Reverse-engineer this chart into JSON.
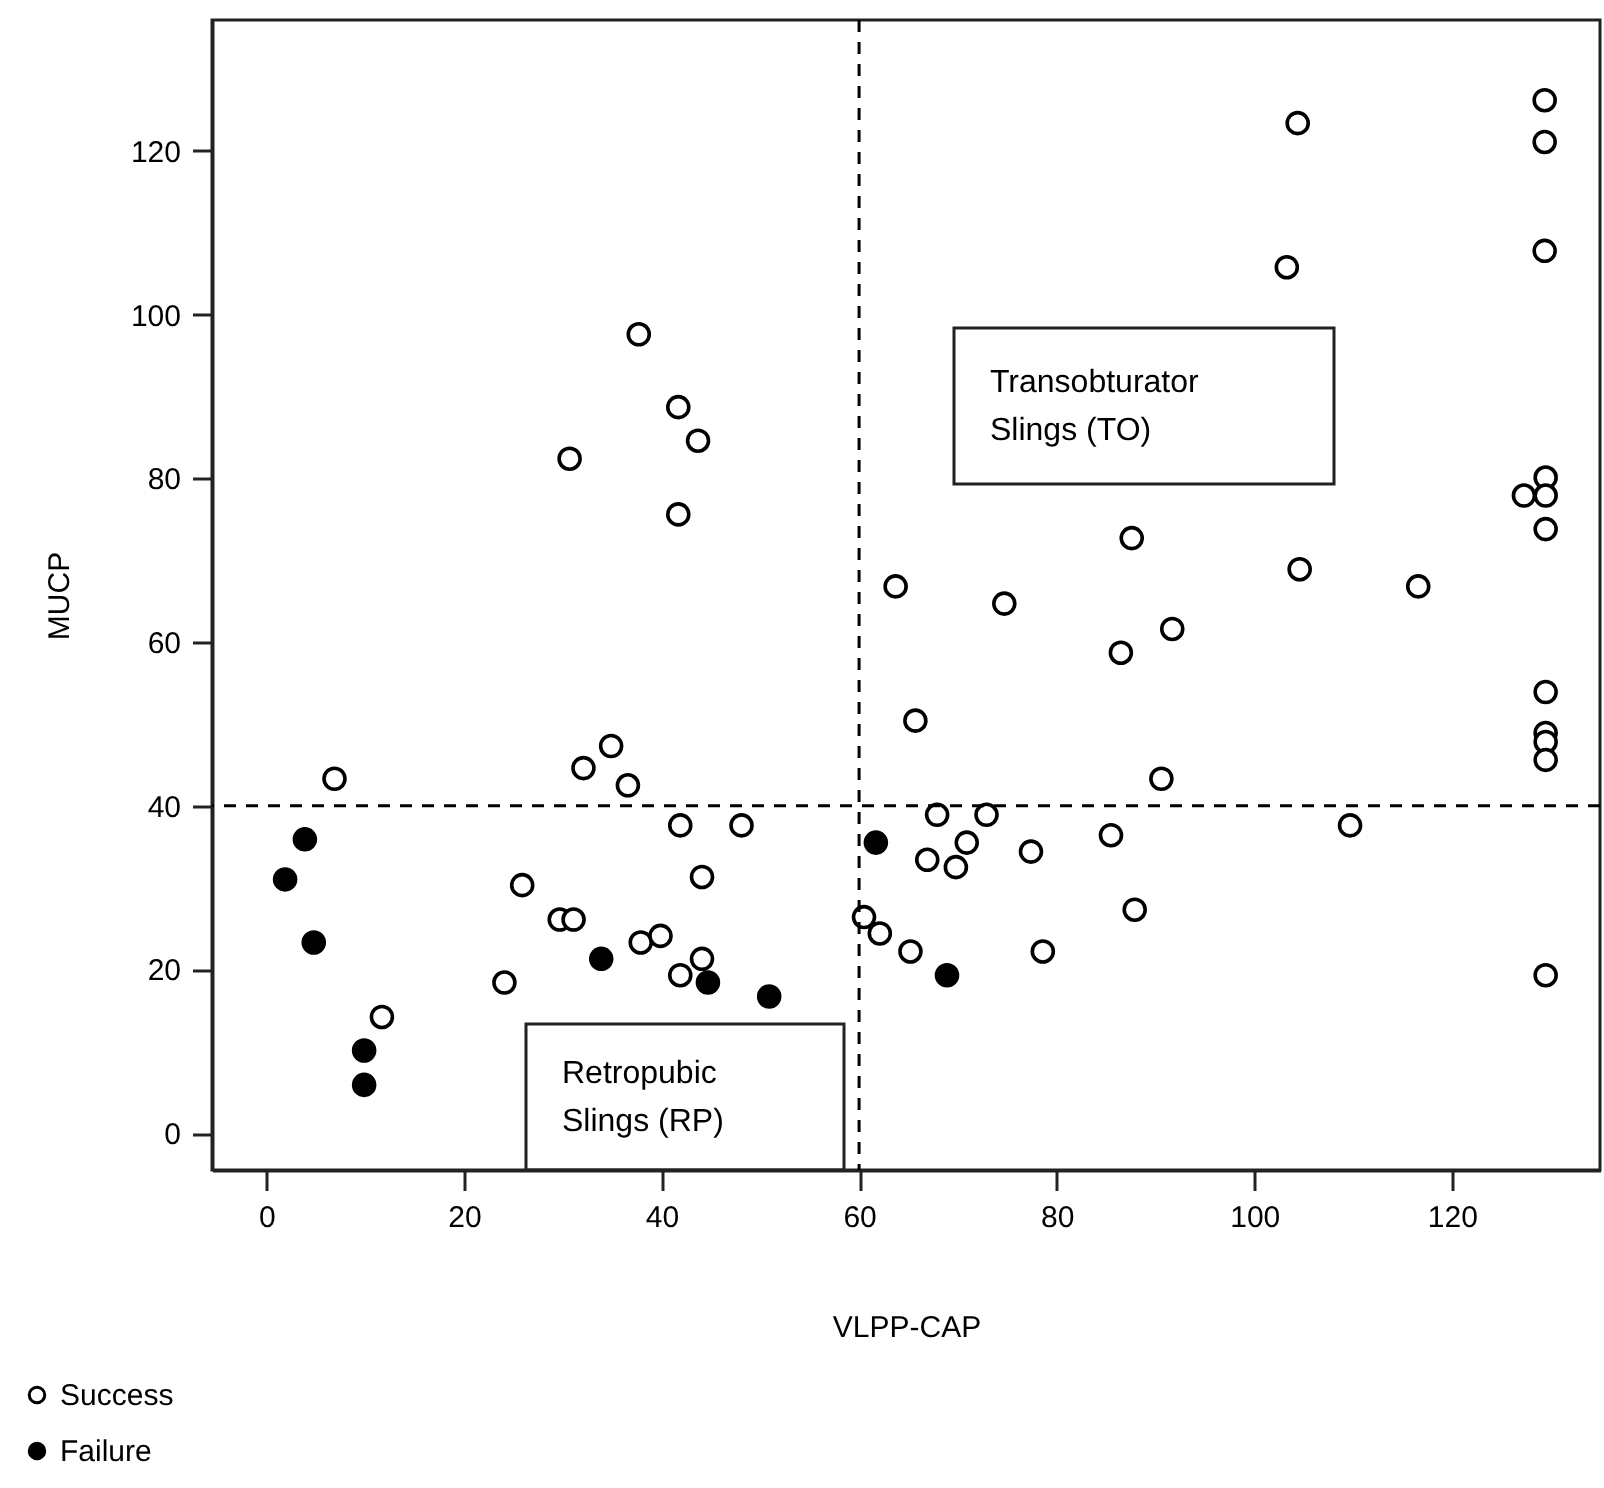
{
  "chart_data": {
    "type": "scatter",
    "xlabel": "VLPP-CAP",
    "ylabel": "MUCP",
    "xlim": [
      -5.5,
      135
    ],
    "ylim": [
      -4.5,
      136
    ],
    "xticks": [
      0,
      20,
      40,
      60,
      80,
      100,
      120
    ],
    "yticks": [
      0,
      20,
      40,
      60,
      80,
      100,
      120
    ],
    "grid": false,
    "legend": "bottom left",
    "marker": "circle",
    "series": [
      {
        "name": "Success",
        "color": "#000000",
        "x": [
          37.7,
          41.7,
          43.7,
          30.7,
          41.7,
          129.4,
          104.4,
          129.4,
          129.4,
          103.3,
          129.5,
          127.3,
          129.5,
          129.5,
          87.6,
          104.6,
          116.6,
          63.7,
          74.7,
          86.5,
          91.7,
          65.7,
          129.5,
          129.5,
          129.5,
          129.5,
          90.6,
          67.9,
          72.9,
          70.9,
          66.9,
          69.8,
          77.4,
          85.5,
          109.7,
          87.9,
          62.1,
          65.2,
          78.6,
          129.5,
          6.9,
          32.1,
          34.9,
          36.6,
          41.9,
          48.1,
          44.1,
          25.9,
          29.7,
          31.1,
          37.9,
          39.9,
          44.1,
          41.9,
          24.1,
          11.7,
          60.5
        ],
        "values": [
          97.6,
          88.7,
          84.6,
          82.4,
          75.6,
          126.2,
          123.4,
          121.1,
          107.8,
          105.8,
          80.1,
          77.9,
          77.9,
          73.8,
          72.7,
          68.9,
          66.8,
          66.8,
          64.7,
          58.7,
          61.6,
          50.4,
          53.9,
          48.9,
          47.8,
          45.6,
          43.3,
          38.9,
          38.9,
          35.5,
          33.4,
          32.5,
          34.4,
          36.4,
          37.6,
          27.3,
          24.4,
          22.2,
          22.2,
          19.3,
          43.3,
          44.6,
          47.3,
          42.5,
          37.6,
          37.6,
          31.3,
          30.3,
          26.1,
          26.1,
          23.3,
          24.1,
          21.3,
          19.3,
          18.4,
          14.2,
          26.4
        ]
      },
      {
        "name": "Failure",
        "color": "#000000",
        "x": [
          3.9,
          1.9,
          4.8,
          9.9,
          9.9,
          33.9,
          44.7,
          50.9,
          61.7,
          68.9
        ],
        "values": [
          35.9,
          31.0,
          23.3,
          10.1,
          5.9,
          21.3,
          18.4,
          16.7,
          35.5,
          19.3
        ]
      }
    ],
    "ref_lines": [
      {
        "axis": "x",
        "value": 60,
        "line_style": "dashed"
      },
      {
        "axis": "y",
        "value": 40,
        "line_style": "dashed"
      }
    ],
    "annotations": [
      "Transobturator Slings (TO)",
      "Retropubic Slings (RP)"
    ]
  }
}
